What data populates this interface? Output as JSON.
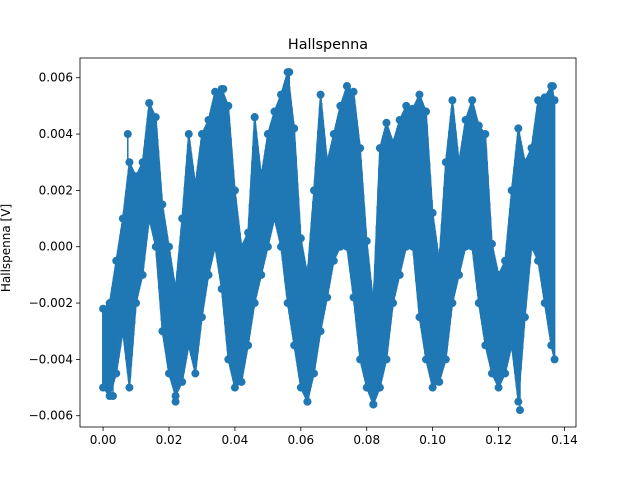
{
  "chart_data": {
    "type": "line",
    "title": "Hallspenna",
    "xlabel": "",
    "ylabel": "Hallspenna [V]",
    "xlim": [
      -0.007,
      0.1435
    ],
    "ylim": [
      -0.0064,
      0.0067
    ],
    "x_ticks": [
      0.0,
      0.02,
      0.04,
      0.06,
      0.08,
      0.1,
      0.12,
      0.14
    ],
    "x_tick_labels": [
      "0.00",
      "0.02",
      "0.04",
      "0.06",
      "0.08",
      "0.10",
      "0.12",
      "0.14"
    ],
    "y_ticks": [
      -0.006,
      -0.004,
      -0.002,
      0.0,
      0.002,
      0.004,
      0.006
    ],
    "y_tick_labels": [
      "−0.006",
      "−0.004",
      "−0.002",
      "0.000",
      "0.002",
      "0.004",
      "0.006"
    ],
    "grid": false,
    "marker": "o",
    "series_color": "#1f77b4",
    "envelope_points": {
      "x": [
        0.0,
        0.002,
        0.004,
        0.006,
        0.008,
        0.01,
        0.012,
        0.014,
        0.016,
        0.018,
        0.02,
        0.022,
        0.024,
        0.026,
        0.028,
        0.03,
        0.032,
        0.034,
        0.036,
        0.038,
        0.04,
        0.042,
        0.044,
        0.046,
        0.048,
        0.05,
        0.052,
        0.054,
        0.056,
        0.058,
        0.06,
        0.062,
        0.064,
        0.066,
        0.068,
        0.07,
        0.072,
        0.074,
        0.076,
        0.078,
        0.08,
        0.082,
        0.084,
        0.086,
        0.088,
        0.09,
        0.092,
        0.094,
        0.096,
        0.098,
        0.1,
        0.102,
        0.104,
        0.106,
        0.108,
        0.11,
        0.112,
        0.114,
        0.116,
        0.118,
        0.12,
        0.122,
        0.124,
        0.126,
        0.128,
        0.13,
        0.132,
        0.134,
        0.136,
        0.137
      ],
      "upper": [
        -0.0022,
        -0.002,
        -0.0005,
        0.001,
        0.003,
        0.0025,
        0.003,
        0.0051,
        0.0046,
        0.0015,
        0.0,
        -0.0015,
        0.001,
        0.004,
        0.0022,
        0.004,
        0.0045,
        0.0055,
        0.0056,
        0.005,
        0.002,
        0.0,
        0.0005,
        0.0046,
        0.0025,
        0.004,
        0.0048,
        0.0054,
        0.0062,
        0.0042,
        0.0003,
        -0.001,
        0.002,
        0.0054,
        0.003,
        0.004,
        0.005,
        0.0057,
        0.0055,
        0.0035,
        0.0002,
        -0.002,
        0.0035,
        0.0044,
        0.0037,
        0.0045,
        0.005,
        0.0049,
        0.0054,
        0.0048,
        0.0012,
        -0.0005,
        0.003,
        0.0052,
        0.003,
        0.0045,
        0.0052,
        0.0043,
        0.004,
        0.0001,
        -0.001,
        -0.0005,
        0.002,
        0.0042,
        0.003,
        0.0035,
        0.0052,
        0.0053,
        0.0057,
        0.0052
      ],
      "lower": [
        -0.005,
        -0.0053,
        -0.0045,
        -0.003,
        -0.005,
        -0.002,
        -0.001,
        0.001,
        0.0,
        -0.003,
        -0.0045,
        -0.0053,
        -0.0048,
        -0.0035,
        -0.0045,
        -0.0025,
        -0.001,
        0.0,
        -0.0015,
        -0.004,
        -0.005,
        -0.0048,
        -0.0035,
        -0.002,
        -0.001,
        0.0,
        0.001,
        0.0,
        -0.002,
        -0.0035,
        -0.005,
        -0.0055,
        -0.0045,
        -0.003,
        -0.0018,
        -0.0005,
        0.0,
        0.0,
        -0.0018,
        -0.004,
        -0.005,
        -0.0056,
        -0.005,
        -0.004,
        -0.002,
        -0.001,
        0.0,
        0.0,
        -0.0025,
        -0.004,
        -0.005,
        -0.0048,
        -0.004,
        -0.002,
        -0.001,
        0.0,
        0.0,
        -0.002,
        -0.0035,
        -0.0045,
        -0.005,
        -0.0045,
        -0.0035,
        -0.0055,
        -0.0025,
        0.0,
        -0.0005,
        -0.002,
        -0.0035,
        -0.004
      ]
    },
    "notable_points": [
      {
        "x": 0.0565,
        "y": 0.0062
      },
      {
        "x": 0.074,
        "y": 0.0057
      },
      {
        "x": 0.1365,
        "y": 0.0057
      },
      {
        "x": 0.0365,
        "y": 0.0056
      },
      {
        "x": 0.1265,
        "y": -0.0058
      },
      {
        "x": 0.062,
        "y": -0.0055
      },
      {
        "x": 0.082,
        "y": -0.0056
      },
      {
        "x": 0.022,
        "y": -0.0055
      },
      {
        "x": 0.003,
        "y": -0.0053
      },
      {
        "x": 0.014,
        "y": 0.0051
      },
      {
        "x": 0.0075,
        "y": 0.004
      },
      {
        "x": 0.046,
        "y": 0.0046
      }
    ]
  }
}
